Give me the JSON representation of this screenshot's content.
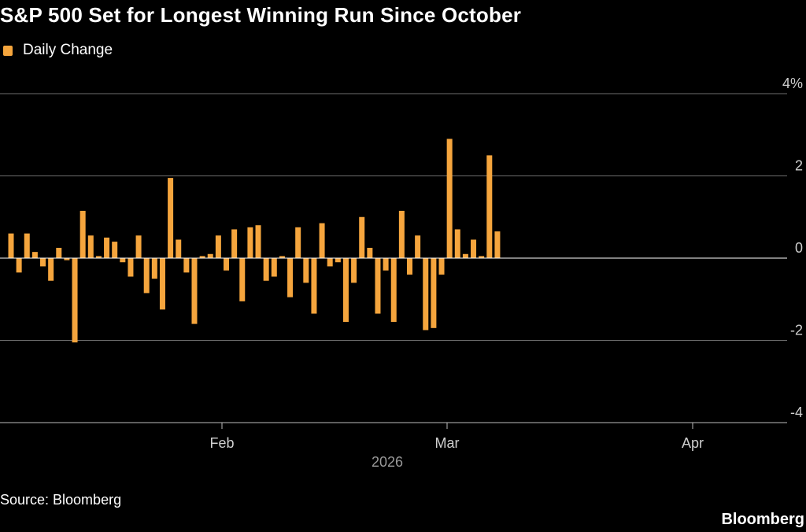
{
  "title": "S&P 500 Set for Longest Winning Run Since October",
  "legend_label": "Daily Change",
  "source": "Source: Bloomberg",
  "brand": "Bloomberg",
  "colors": {
    "bar": "#f5a53d",
    "grid": "#6e6e6e",
    "axis_text": "#cfcfcf",
    "year_text": "#9a9a9a"
  },
  "chart_data": {
    "type": "bar",
    "title": "S&P 500 Set for Longest Winning Run Since October",
    "series": [
      {
        "name": "Daily Change",
        "values": [
          0.6,
          -0.35,
          0.6,
          0.15,
          -0.2,
          -0.55,
          0.25,
          -0.05,
          -2.05,
          1.15,
          0.55,
          0.05,
          0.5,
          0.4,
          -0.1,
          -0.45,
          0.55,
          -0.85,
          -0.5,
          -1.25,
          1.95,
          0.45,
          -0.35,
          -1.6,
          0.05,
          0.1,
          0.55,
          -0.3,
          0.7,
          -1.05,
          0.75,
          0.8,
          -0.55,
          -0.45,
          0.05,
          -0.95,
          0.75,
          -0.6,
          -1.35,
          0.85,
          -0.2,
          -0.1,
          -1.55,
          -0.6,
          1.0,
          0.25,
          -1.35,
          -0.3,
          -1.55,
          1.15,
          -0.4,
          0.55,
          -1.75,
          -1.7,
          -0.4,
          2.9,
          0.7,
          0.1,
          0.45,
          0.05,
          2.5,
          0.65
        ]
      }
    ],
    "x_labels": [
      "Feb",
      "Mar",
      "Apr"
    ],
    "x_year_label": "2026",
    "y_ticks": [
      4,
      2,
      0,
      -2,
      -4
    ],
    "y_tick_labels": [
      "4%",
      "2",
      "0",
      "-2",
      "-4"
    ],
    "ylim": [
      -4,
      4
    ],
    "xlabel": "",
    "ylabel": "",
    "grid": true,
    "legend_position": "top-left"
  }
}
